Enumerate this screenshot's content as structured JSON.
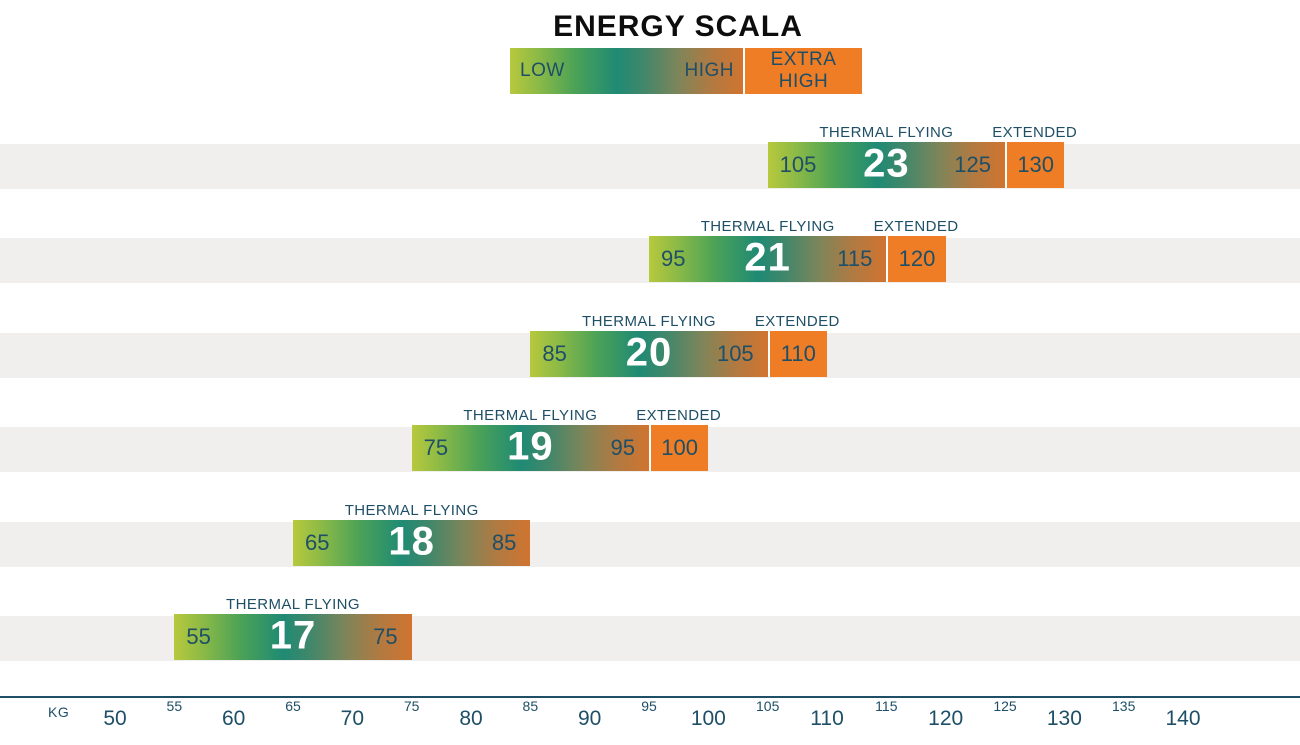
{
  "title": "ENERGY SCALA",
  "legend": {
    "low_label": "LOW",
    "high_label": "HIGH",
    "extra_high_label": "EXTRA HIGH"
  },
  "axis": {
    "unit_label": "KG",
    "major_ticks": [
      "50",
      "60",
      "70",
      "80",
      "90",
      "100",
      "110",
      "120",
      "130",
      "140"
    ],
    "minor_ticks": [
      "55",
      "65",
      "75",
      "85",
      "95",
      "105",
      "115",
      "125",
      "135"
    ]
  },
  "colors": {
    "navy_text": "#1e4f66",
    "extended_orange": "#ef7d26",
    "gradient_start_green": "#b7c83d",
    "gradient_mid_teal": "#1f8a74",
    "gradient_end_orange": "#d0742f",
    "row_band_gray": "#f0efee",
    "title_black": "#0d0d0d",
    "bar_size_text": "#ffffff"
  },
  "chart_data": {
    "type": "bar",
    "orientation": "horizontal",
    "title": "ENERGY SCALA",
    "xlabel": "KG",
    "xlim": [
      50,
      140
    ],
    "x_major_ticks": [
      50,
      60,
      70,
      80,
      90,
      100,
      110,
      120,
      130,
      140
    ],
    "x_minor_ticks": [
      55,
      65,
      75,
      85,
      95,
      105,
      115,
      125,
      135
    ],
    "legend_zones": [
      "LOW",
      "HIGH",
      "EXTRA HIGH"
    ],
    "sizes": [
      {
        "size": "23",
        "thermal_label": "THERMAL FLYING",
        "thermal_min": 105,
        "thermal_max": 125,
        "extended_label": "EXTENDED",
        "extended_max": 130
      },
      {
        "size": "21",
        "thermal_label": "THERMAL FLYING",
        "thermal_min": 95,
        "thermal_max": 115,
        "extended_label": "EXTENDED",
        "extended_max": 120
      },
      {
        "size": "20",
        "thermal_label": "THERMAL FLYING",
        "thermal_min": 85,
        "thermal_max": 105,
        "extended_label": "EXTENDED",
        "extended_max": 110
      },
      {
        "size": "19",
        "thermal_label": "THERMAL FLYING",
        "thermal_min": 75,
        "thermal_max": 95,
        "extended_label": "EXTENDED",
        "extended_max": 100
      },
      {
        "size": "18",
        "thermal_label": "THERMAL FLYING",
        "thermal_min": 65,
        "thermal_max": 85,
        "extended_label": null,
        "extended_max": null
      },
      {
        "size": "17",
        "thermal_label": "THERMAL FLYING",
        "thermal_min": 55,
        "thermal_max": 75,
        "extended_label": null,
        "extended_max": null
      }
    ]
  }
}
